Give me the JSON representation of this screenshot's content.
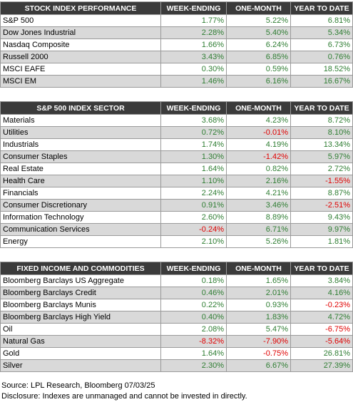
{
  "stock": {
    "headers": [
      "STOCK INDEX PERFORMANCE",
      "WEEK-ENDING",
      "ONE-MONTH",
      "YEAR TO DATE"
    ],
    "rows": [
      {
        "name": "S&P 500",
        "week": "1.77%",
        "month": "5.22%",
        "ytd": "6.81%"
      },
      {
        "name": "Dow Jones Industrial",
        "week": "2.28%",
        "month": "5.40%",
        "ytd": "5.34%"
      },
      {
        "name": "Nasdaq Composite",
        "week": "1.66%",
        "month": "6.24%",
        "ytd": "6.73%"
      },
      {
        "name": "Russell 2000",
        "week": "3.43%",
        "month": "6.85%",
        "ytd": "0.76%"
      },
      {
        "name": "MSCI EAFE",
        "week": "0.30%",
        "month": "0.59%",
        "ytd": "18.52%"
      },
      {
        "name": "MSCI EM",
        "week": "1.46%",
        "month": "6.16%",
        "ytd": "16.67%"
      }
    ]
  },
  "sector": {
    "headers": [
      "S&P 500 INDEX SECTOR",
      "WEEK-ENDING",
      "ONE-MONTH",
      "YEAR TO DATE"
    ],
    "rows": [
      {
        "name": "Materials",
        "week": "3.68%",
        "month": "4.23%",
        "ytd": "8.72%"
      },
      {
        "name": "Utilities",
        "week": "0.72%",
        "month": "-0.01%",
        "ytd": "8.10%"
      },
      {
        "name": "Industrials",
        "week": "1.74%",
        "month": "4.19%",
        "ytd": "13.34%"
      },
      {
        "name": "Consumer Staples",
        "week": "1.30%",
        "month": "-1.42%",
        "ytd": "5.97%"
      },
      {
        "name": "Real Estate",
        "week": "1.64%",
        "month": "0.82%",
        "ytd": "2.72%"
      },
      {
        "name": "Health Care",
        "week": "1.10%",
        "month": "2.16%",
        "ytd": "-1.55%"
      },
      {
        "name": "Financials",
        "week": "2.24%",
        "month": "4.21%",
        "ytd": "8.87%"
      },
      {
        "name": "Consumer Discretionary",
        "week": "0.91%",
        "month": "3.46%",
        "ytd": "-2.51%"
      },
      {
        "name": "Information Technology",
        "week": "2.60%",
        "month": "8.89%",
        "ytd": "9.43%"
      },
      {
        "name": "Communication Services",
        "week": "-0.24%",
        "month": "6.71%",
        "ytd": "9.97%"
      },
      {
        "name": "Energy",
        "week": "2.10%",
        "month": "5.26%",
        "ytd": "1.81%"
      }
    ]
  },
  "fixed": {
    "headers": [
      "FIXED INCOME AND COMMODITIES",
      "WEEK-ENDING",
      "ONE-MONTH",
      "YEAR TO DATE"
    ],
    "rows": [
      {
        "name": "Bloomberg Barclays US Aggregate",
        "week": "0.18%",
        "month": "1.65%",
        "ytd": "3.84%"
      },
      {
        "name": "Bloomberg Barclays Credit",
        "week": "0.46%",
        "month": "2.01%",
        "ytd": "4.16%"
      },
      {
        "name": "Bloomberg Barclays Munis",
        "week": "0.22%",
        "month": "0.93%",
        "ytd": "-0.23%"
      },
      {
        "name": "Bloomberg Barclays High Yield",
        "week": "0.40%",
        "month": "1.83%",
        "ytd": "4.72%"
      },
      {
        "name": "Oil",
        "week": "2.08%",
        "month": "5.47%",
        "ytd": "-6.75%"
      },
      {
        "name": "Natural Gas",
        "week": "-8.32%",
        "month": "-7.90%",
        "ytd": "-5.64%"
      },
      {
        "name": "Gold",
        "week": "1.64%",
        "month": "-0.75%",
        "ytd": "26.81%"
      },
      {
        "name": "Silver",
        "week": "2.30%",
        "month": "6.67%",
        "ytd": "27.39%"
      }
    ]
  },
  "notes": {
    "source": "Source: LPL Research, Bloomberg 07/03/25",
    "disclosure": "Disclosure: Indexes are unmanaged and cannot be invested in directly."
  },
  "colors": {
    "positive": "#2e7d32",
    "negative": "#e00000",
    "header_bg": "#3b3b3b",
    "alt_row": "#d9d9d9"
  }
}
